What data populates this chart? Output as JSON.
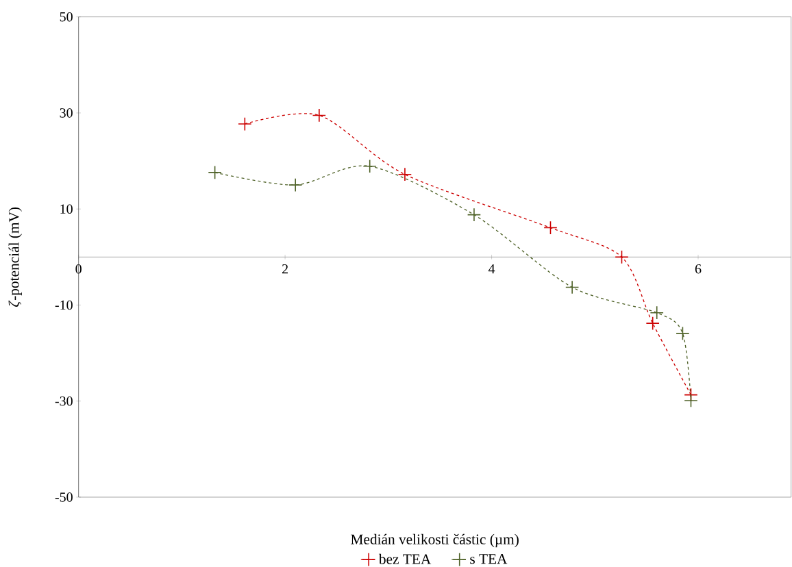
{
  "chart_data": {
    "type": "line",
    "xlabel": "Medián velikosti částic (µm)",
    "ylabel": "*ζ*-potenciál (mV)",
    "xlim": [
      0,
      6.9
    ],
    "xticks": [
      0,
      2,
      4,
      6
    ],
    "ylim": [
      -50,
      50
    ],
    "yticks": [
      -50,
      -30,
      -10,
      10,
      30,
      50
    ],
    "grid": false,
    "legend": "bottom",
    "line_style": "dashed",
    "series": [
      {
        "name": "bez TEA",
        "color": "#cc0000",
        "marker": "cross",
        "x": [
          1.61,
          2.33,
          3.16,
          4.57,
          5.26,
          5.56,
          5.93
        ],
        "values": [
          27.7,
          29.5,
          17.2,
          6.1,
          0,
          -13.8,
          -28.7
        ]
      },
      {
        "name": "s TEA",
        "color": "#4f6228",
        "marker": "cross",
        "x": [
          1.32,
          2.1,
          2.82,
          3.83,
          4.78,
          5.6,
          5.85,
          5.93
        ],
        "values": [
          17.6,
          15,
          18.9,
          8.8,
          -6.3,
          -11.6,
          -15.9,
          -29.9
        ]
      }
    ]
  }
}
